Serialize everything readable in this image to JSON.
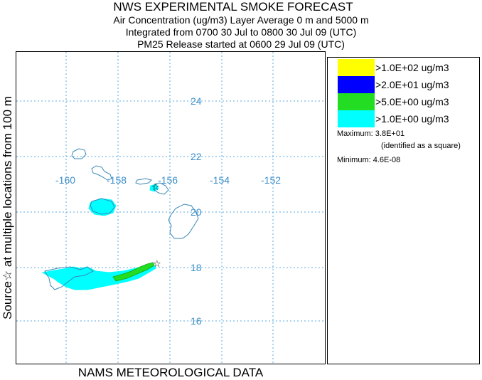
{
  "header": {
    "title": "NWS EXPERIMENTAL SMOKE FORECAST",
    "line2": "Air Concentration (ug/m3) Layer Average    0 m and  5000 m",
    "line3": "Integrated from 0700 30 Jul to 0800 30 Jul 09 (UTC)",
    "line4": "PM25 Release started at 0600 29 Jul 09 (UTC)"
  },
  "side_label": "Source☆  at multiple locations    from  100 m",
  "footer": "NAMS METEOROLOGICAL DATA",
  "map": {
    "longitude_labels": [
      "-160",
      "-158",
      "-156",
      "-154",
      "-152"
    ],
    "latitude_labels": [
      "24",
      "22",
      "20",
      "18",
      "16"
    ],
    "grid_color": "#5aa9e0",
    "coast_color": "#3a88b8",
    "label_color": "#3c8fc8",
    "source_marker": "star-icon"
  },
  "legend": {
    "items": [
      {
        "label": ">1.0E+02 ug/m3",
        "color": "#ffff00"
      },
      {
        "label": ">2.0E+01 ug/m3",
        "color": "#0000ff"
      },
      {
        "label": ">5.0E+00 ug/m3",
        "color": "#22dd22"
      },
      {
        "label": ">1.0E+00 ug/m3",
        "color": "#00ffff"
      }
    ],
    "maximum": "Maximum: 3.8E+01",
    "maximum_note": "(identified as a square)",
    "minimum": "Minimum: 4.6E-08"
  }
}
